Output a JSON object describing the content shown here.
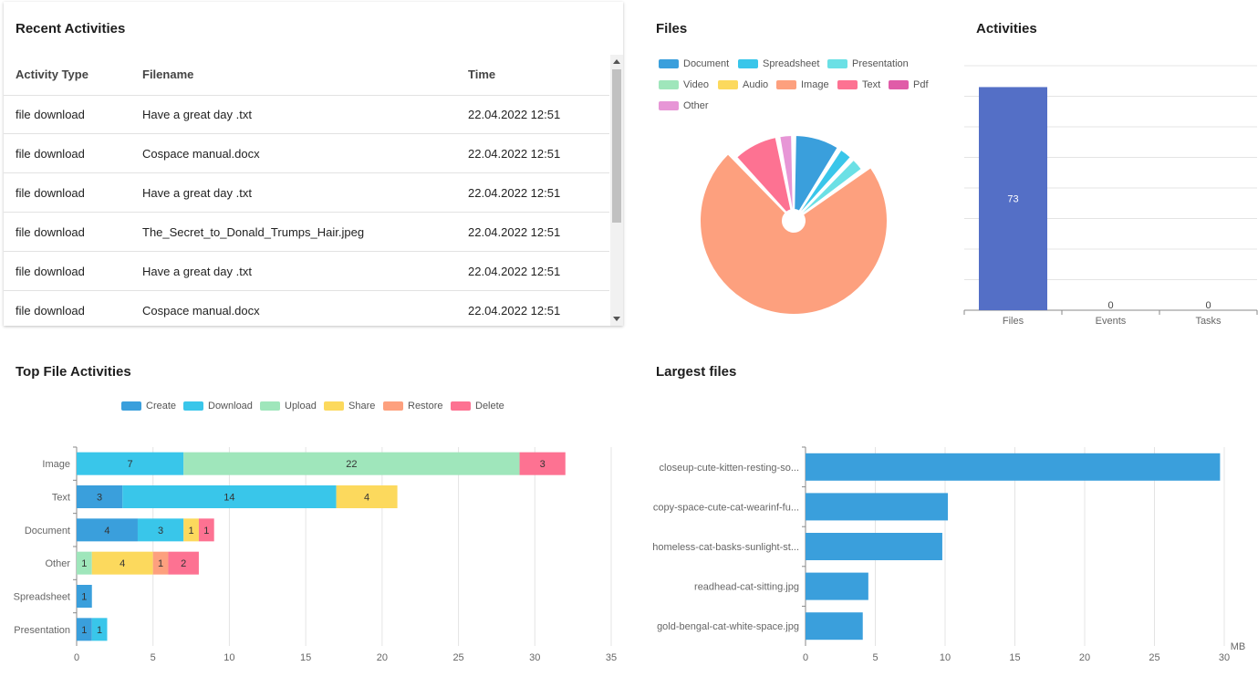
{
  "recent": {
    "title": "Recent Activities",
    "columns": [
      "Activity Type",
      "Filename",
      "Time"
    ],
    "rows": [
      {
        "type": "file download",
        "filename": "Have a great day .txt",
        "time": "22.04.2022 12:51"
      },
      {
        "type": "file download",
        "filename": "Cospace manual.docx",
        "time": "22.04.2022 12:51"
      },
      {
        "type": "file download",
        "filename": "Have a great day .txt",
        "time": "22.04.2022 12:51"
      },
      {
        "type": "file download",
        "filename": "The_Secret_to_Donald_Trumps_Hair.jpeg",
        "time": "22.04.2022 12:51"
      },
      {
        "type": "file download",
        "filename": "Have a great day .txt",
        "time": "22.04.2022 12:51"
      },
      {
        "type": "file download",
        "filename": "Cospace manual.docx",
        "time": "22.04.2022 12:51"
      }
    ]
  },
  "files": {
    "title": "Files",
    "legend": [
      {
        "label": "Document",
        "color": "#3a9fdc"
      },
      {
        "label": "Spreadsheet",
        "color": "#39c6ea"
      },
      {
        "label": "Presentation",
        "color": "#6be0e5"
      },
      {
        "label": "Video",
        "color": "#9fe6bb"
      },
      {
        "label": "Audio",
        "color": "#fcd95d"
      },
      {
        "label": "Image",
        "color": "#fda07e"
      },
      {
        "label": "Text",
        "color": "#fd7292"
      },
      {
        "label": "Pdf",
        "color": "#e05ca8"
      },
      {
        "label": "Other",
        "color": "#e796d6"
      }
    ]
  },
  "activities": {
    "title": "Activities"
  },
  "top_file": {
    "title": "Top File Activities",
    "legend": [
      {
        "label": "Create",
        "color": "#3a9fdc"
      },
      {
        "label": "Download",
        "color": "#39c6ea"
      },
      {
        "label": "Upload",
        "color": "#9fe6bb"
      },
      {
        "label": "Share",
        "color": "#fcd95d"
      },
      {
        "label": "Restore",
        "color": "#fda07e"
      },
      {
        "label": "Delete",
        "color": "#fd7292"
      }
    ]
  },
  "largest": {
    "title": "Largest files"
  },
  "chart_data": [
    {
      "type": "pie",
      "title": "Files",
      "categories": [
        "Document",
        "Spreadsheet",
        "Presentation",
        "Video",
        "Audio",
        "Image",
        "Text",
        "Pdf",
        "Other"
      ],
      "values": [
        9,
        3,
        3,
        0,
        0,
        73,
        9,
        0,
        3
      ]
    },
    {
      "type": "bar",
      "title": "Activities",
      "categories": [
        "Files",
        "Events",
        "Tasks"
      ],
      "values": [
        73,
        0,
        0
      ],
      "ylim": [
        0,
        80
      ],
      "color": "#546fc6"
    },
    {
      "type": "bar",
      "orientation": "horizontal",
      "stacked": true,
      "title": "Top File Activities",
      "categories": [
        "Image",
        "Text",
        "Document",
        "Other",
        "Spreadsheet",
        "Presentation"
      ],
      "series": [
        {
          "name": "Create",
          "values": [
            0,
            3,
            4,
            0,
            1,
            1
          ]
        },
        {
          "name": "Download",
          "values": [
            7,
            14,
            3,
            0,
            0,
            1
          ]
        },
        {
          "name": "Upload",
          "values": [
            22,
            0,
            0,
            1,
            0,
            0
          ]
        },
        {
          "name": "Share",
          "values": [
            0,
            4,
            1,
            4,
            0,
            0
          ]
        },
        {
          "name": "Restore",
          "values": [
            0,
            0,
            0,
            1,
            0,
            0
          ]
        },
        {
          "name": "Delete",
          "values": [
            3,
            0,
            1,
            2,
            0,
            0
          ]
        }
      ],
      "xlim": [
        0,
        35
      ],
      "xticks": [
        0,
        5,
        10,
        15,
        20,
        25,
        30,
        35
      ]
    },
    {
      "type": "bar",
      "orientation": "horizontal",
      "title": "Largest files",
      "categories": [
        "closeup-cute-kitten-resting-so...",
        "copy-space-cute-cat-wearinf-fu...",
        "homeless-cat-basks-sunlight-st...",
        "readhead-cat-sitting.jpg",
        "gold-bengal-cat-white-space.jpg"
      ],
      "values": [
        29.7,
        10.2,
        9.8,
        4.5,
        4.1
      ],
      "xlim": [
        0,
        30
      ],
      "xticks": [
        0,
        5,
        10,
        15,
        20,
        25,
        30
      ],
      "unit": "MB",
      "color": "#3a9fdc"
    }
  ]
}
